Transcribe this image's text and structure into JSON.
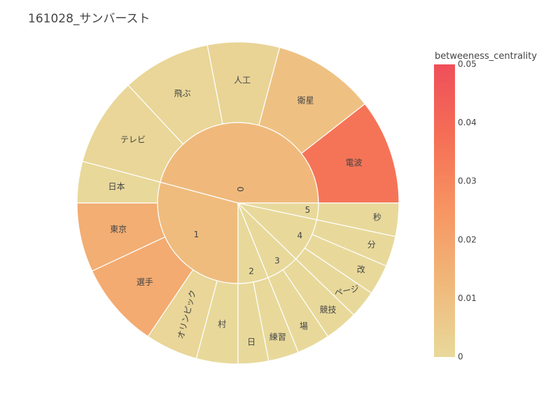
{
  "title": "161028_サンバースト",
  "chart_data": {
    "type": "sunburst",
    "title": "161028_サンバースト",
    "colorbar": {
      "title": "betweeness_centrality",
      "range": [
        0,
        0.05
      ],
      "ticks": [
        "0",
        "0.01",
        "0.02",
        "0.03",
        "0.04",
        "0.05"
      ],
      "tick_values": [
        0,
        0.01,
        0.02,
        0.03,
        0.04,
        0.05
      ],
      "colors": [
        "#e8d99b",
        "#f0b87a",
        "#f79562",
        "#f56f56",
        "#ef4f5a"
      ]
    },
    "groups": [
      {
        "label": "0",
        "value": 0.012,
        "children": [
          {
            "label": "電波",
            "value": 0.036
          },
          {
            "label": "衛星",
            "value": 0.009
          },
          {
            "label": "人工",
            "value": 0.002
          },
          {
            "label": "飛ぶ",
            "value": 0.001
          },
          {
            "label": "テレビ",
            "value": 0.001
          }
        ]
      },
      {
        "label": "1",
        "value": 0.011,
        "children": [
          {
            "label": "日本",
            "value": 0.0005
          },
          {
            "label": "東京",
            "value": 0.016
          },
          {
            "label": "選手",
            "value": 0.017
          },
          {
            "label": "オリンピック",
            "value": 0.001
          },
          {
            "label": "村",
            "value": 0.0
          }
        ]
      },
      {
        "label": "2",
        "value": 0.0,
        "children": [
          {
            "label": "日",
            "value": 0.0
          },
          {
            "label": "練習",
            "value": 0.0
          }
        ]
      },
      {
        "label": "3",
        "value": 0.0,
        "children": [
          {
            "label": "場",
            "value": 0.0
          },
          {
            "label": "競技",
            "value": 0.0
          }
        ]
      },
      {
        "label": "4",
        "value": 0.0,
        "children": [
          {
            "label": "ページ",
            "value": 0.0
          },
          {
            "label": "改",
            "value": 0.0
          },
          {
            "label": "分",
            "value": 0.0
          }
        ]
      },
      {
        "label": "5",
        "value": 0.0,
        "children": [
          {
            "label": "秒",
            "value": 0.0
          }
        ]
      }
    ]
  }
}
